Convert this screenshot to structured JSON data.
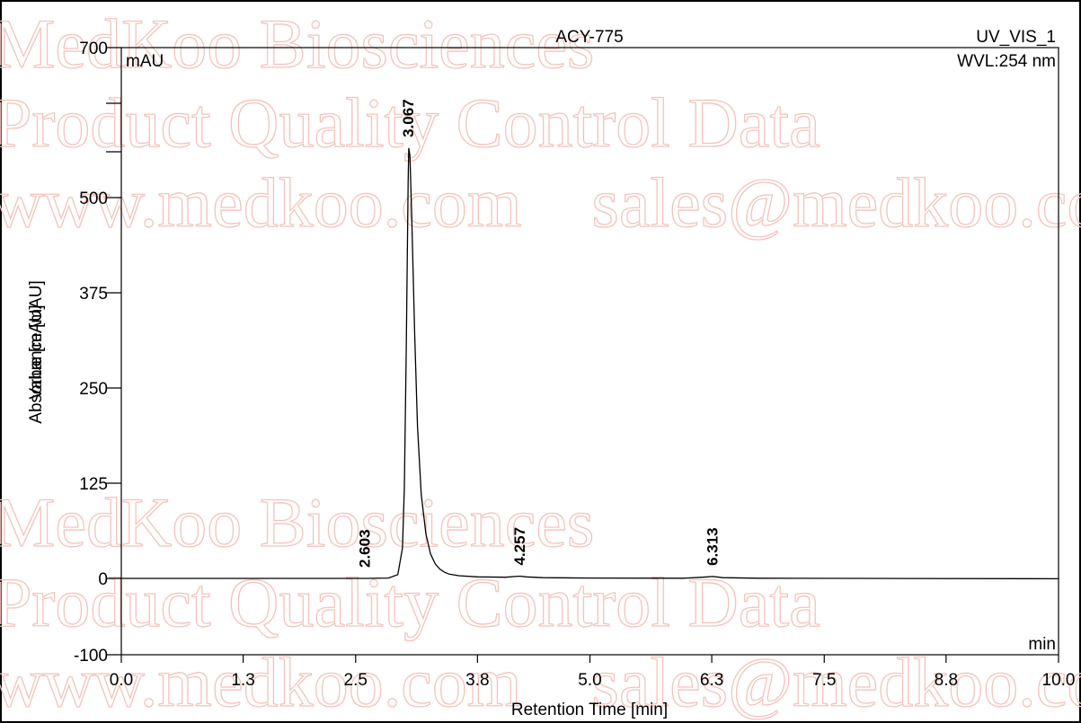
{
  "header": {
    "sample": "ACY-775",
    "channel": "UV_VIS_1",
    "wavelength": "WVL:254 nm",
    "y_unit": "mAU",
    "x_unit": "min"
  },
  "watermark": {
    "line1": "MedKoo Biosciences",
    "line2": "Product Quality Control Data",
    "line3": "www.medkoo.com    sales@medkoo.com"
  },
  "chart_data": {
    "type": "line",
    "title": "ACY-775",
    "xlabel": "Retention Time [min]",
    "ylabel": "Absorbance [mAU]",
    "ylabel_overlay": "Value [mAU]",
    "xlim": [
      0.0,
      10.0
    ],
    "ylim": [
      -100,
      700
    ],
    "x_ticks": [
      0.0,
      1.3,
      2.5,
      3.8,
      5.0,
      6.3,
      7.5,
      8.8,
      10.0
    ],
    "x_tick_labels": [
      "0.0",
      "1.3",
      "2.5",
      "3.8",
      "5.0",
      "6.3",
      "7.5",
      "8.8",
      "10.0"
    ],
    "y_ticks": [
      -100,
      0,
      125,
      250,
      375,
      500,
      700
    ],
    "y_tick_labels": [
      "-100",
      "0",
      "125",
      "250",
      "375",
      "500",
      "700"
    ],
    "grid": false,
    "series": [
      {
        "color": "#000000",
        "x": [
          0.0,
          2.0,
          2.6,
          2.85,
          2.95,
          3.0,
          3.02,
          3.04,
          3.06,
          3.067,
          3.08,
          3.1,
          3.13,
          3.16,
          3.2,
          3.25,
          3.3,
          3.35,
          3.4,
          3.45,
          3.5,
          3.6,
          3.8,
          4.1,
          4.2,
          4.257,
          4.32,
          4.5,
          5.0,
          6.0,
          6.2,
          6.313,
          6.42,
          6.8,
          8.0,
          10.0
        ],
        "y": [
          0,
          0,
          0,
          0.5,
          5,
          40,
          120,
          300,
          520,
          565,
          555,
          470,
          320,
          200,
          110,
          58,
          32,
          19,
          12,
          8,
          5.5,
          3.5,
          2,
          1.5,
          2.5,
          3,
          2,
          1,
          0.5,
          0.2,
          1.5,
          2.5,
          1,
          0.2,
          0,
          -0.5
        ]
      }
    ],
    "peaks": [
      {
        "label": "2.603",
        "x": 2.603,
        "y": 0
      },
      {
        "label": "3.067",
        "x": 3.067,
        "y": 565
      },
      {
        "label": "4.257",
        "x": 4.257,
        "y": 3
      },
      {
        "label": "6.313",
        "x": 6.313,
        "y": 2.5
      }
    ]
  }
}
